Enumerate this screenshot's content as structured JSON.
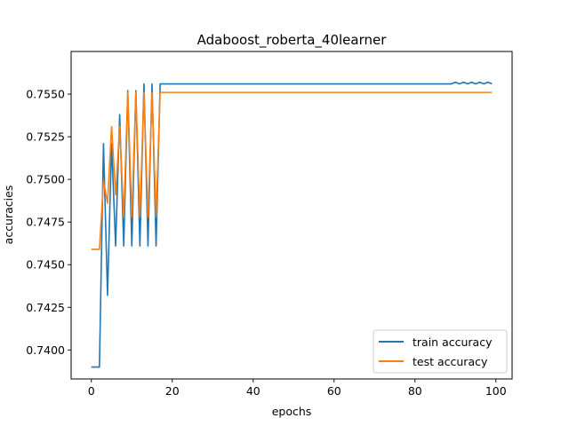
{
  "chart_data": {
    "type": "line",
    "title": "Adaboost_roberta_40learner",
    "xlabel": "epochs",
    "ylabel": "accuracies",
    "xlim": [
      -5,
      104
    ],
    "ylim": [
      0.7383,
      0.7575
    ],
    "x_ticks": [
      0,
      20,
      40,
      60,
      80,
      100
    ],
    "y_ticks": [
      0.74,
      0.7425,
      0.745,
      0.7475,
      0.75,
      0.7525,
      0.755
    ],
    "grid": false,
    "legend_position": "lower-right",
    "series": [
      {
        "name": "train accuracy",
        "color": "#1f77b4",
        "x": [
          0,
          1,
          2,
          3,
          4,
          5,
          6,
          7,
          8,
          9,
          10,
          11,
          12,
          13,
          14,
          15,
          16,
          17,
          18,
          19,
          20,
          21,
          22,
          23,
          24,
          25,
          26,
          27,
          28,
          29,
          30,
          31,
          32,
          33,
          34,
          35,
          36,
          37,
          38,
          39,
          40,
          41,
          42,
          43,
          44,
          45,
          46,
          47,
          48,
          49,
          50,
          51,
          52,
          53,
          54,
          55,
          56,
          57,
          58,
          59,
          60,
          61,
          62,
          63,
          64,
          65,
          66,
          67,
          68,
          69,
          70,
          71,
          72,
          73,
          74,
          75,
          76,
          77,
          78,
          79,
          80,
          81,
          82,
          83,
          84,
          85,
          86,
          87,
          88,
          89,
          90,
          91,
          92,
          93,
          94,
          95,
          96,
          97,
          98,
          99
        ],
        "y": [
          0.739,
          0.739,
          0.739,
          0.7521,
          0.7432,
          0.7521,
          0.7461,
          0.7538,
          0.7461,
          0.7552,
          0.7461,
          0.7552,
          0.7461,
          0.7556,
          0.7461,
          0.7556,
          0.7461,
          0.7556,
          0.7556,
          0.7556,
          0.7556,
          0.7556,
          0.7556,
          0.7556,
          0.7556,
          0.7556,
          0.7556,
          0.7556,
          0.7556,
          0.7556,
          0.7556,
          0.7556,
          0.7556,
          0.7556,
          0.7556,
          0.7556,
          0.7556,
          0.7556,
          0.7556,
          0.7556,
          0.7556,
          0.7556,
          0.7556,
          0.7556,
          0.7556,
          0.7556,
          0.7556,
          0.7556,
          0.7556,
          0.7556,
          0.7556,
          0.7556,
          0.7556,
          0.7556,
          0.7556,
          0.7556,
          0.7556,
          0.7556,
          0.7556,
          0.7556,
          0.7556,
          0.7556,
          0.7556,
          0.7556,
          0.7556,
          0.7556,
          0.7556,
          0.7556,
          0.7556,
          0.7556,
          0.7556,
          0.7556,
          0.7556,
          0.7556,
          0.7556,
          0.7556,
          0.7556,
          0.7556,
          0.7556,
          0.7556,
          0.7556,
          0.7556,
          0.7556,
          0.7556,
          0.7556,
          0.7556,
          0.7556,
          0.7556,
          0.7556,
          0.7556,
          0.7557,
          0.7556,
          0.7557,
          0.7556,
          0.7557,
          0.7556,
          0.7557,
          0.7556,
          0.7557,
          0.7556
        ]
      },
      {
        "name": "test accuracy",
        "color": "#ff7f0e",
        "x": [
          0,
          1,
          2,
          3,
          4,
          5,
          6,
          7,
          8,
          9,
          10,
          11,
          12,
          13,
          14,
          15,
          16,
          17,
          18,
          19,
          20,
          21,
          22,
          23,
          24,
          25,
          26,
          27,
          28,
          29,
          30,
          31,
          32,
          33,
          34,
          35,
          36,
          37,
          38,
          39,
          40,
          41,
          42,
          43,
          44,
          45,
          46,
          47,
          48,
          49,
          50,
          51,
          52,
          53,
          54,
          55,
          56,
          57,
          58,
          59,
          60,
          61,
          62,
          63,
          64,
          65,
          66,
          67,
          68,
          69,
          70,
          71,
          72,
          73,
          74,
          75,
          76,
          77,
          78,
          79,
          80,
          81,
          82,
          83,
          84,
          85,
          86,
          87,
          88,
          89,
          90,
          91,
          92,
          93,
          94,
          95,
          96,
          97,
          98,
          99
        ],
        "y": [
          0.7459,
          0.7459,
          0.7459,
          0.7499,
          0.7486,
          0.7531,
          0.7491,
          0.7531,
          0.7478,
          0.7551,
          0.7478,
          0.7551,
          0.7478,
          0.7551,
          0.7478,
          0.7551,
          0.7478,
          0.7551,
          0.7551,
          0.7551,
          0.7551,
          0.7551,
          0.7551,
          0.7551,
          0.7551,
          0.7551,
          0.7551,
          0.7551,
          0.7551,
          0.7551,
          0.7551,
          0.7551,
          0.7551,
          0.7551,
          0.7551,
          0.7551,
          0.7551,
          0.7551,
          0.7551,
          0.7551,
          0.7551,
          0.7551,
          0.7551,
          0.7551,
          0.7551,
          0.7551,
          0.7551,
          0.7551,
          0.7551,
          0.7551,
          0.7551,
          0.7551,
          0.7551,
          0.7551,
          0.7551,
          0.7551,
          0.7551,
          0.7551,
          0.7551,
          0.7551,
          0.7551,
          0.7551,
          0.7551,
          0.7551,
          0.7551,
          0.7551,
          0.7551,
          0.7551,
          0.7551,
          0.7551,
          0.7551,
          0.7551,
          0.7551,
          0.7551,
          0.7551,
          0.7551,
          0.7551,
          0.7551,
          0.7551,
          0.7551,
          0.7551,
          0.7551,
          0.7551,
          0.7551,
          0.7551,
          0.7551,
          0.7551,
          0.7551,
          0.7551,
          0.7551,
          0.7551,
          0.7551,
          0.7551,
          0.7551,
          0.7551,
          0.7551,
          0.7551,
          0.7551,
          0.7551,
          0.7551
        ]
      }
    ]
  }
}
